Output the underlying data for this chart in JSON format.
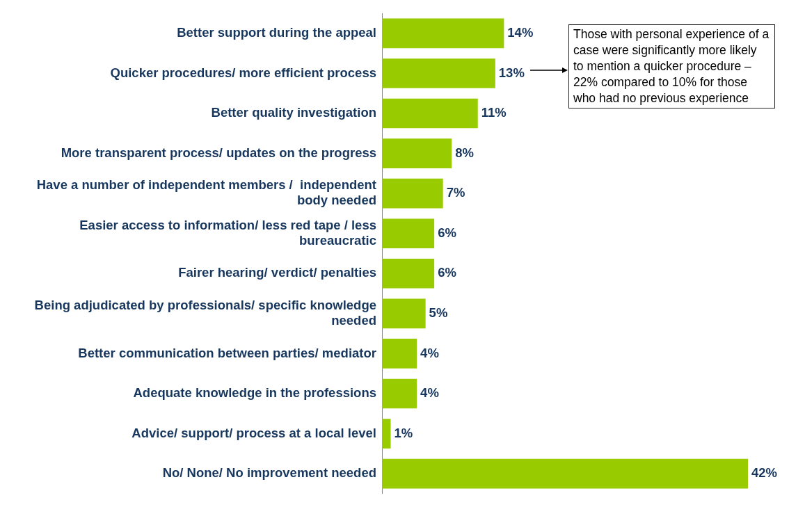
{
  "chart_data": {
    "type": "bar",
    "orientation": "horizontal",
    "categories": [
      "Better support during the appeal",
      "Quicker procedures/ more efficient process",
      "Better quality investigation",
      "More transparent process/ updates on the progress",
      "Have a number of independent members /  independent body needed",
      "Easier access to information/ less red tape / less bureaucratic",
      "Fairer hearing/ verdict/ penalties",
      "Being adjudicated by professionals/ specific knowledge needed",
      "Better communication between parties/ mediator",
      "Adequate knowledge in the professions",
      "Advice/ support/ process at a local level",
      "No/ None/ No improvement needed"
    ],
    "values": [
      14,
      13,
      11,
      8,
      7,
      6,
      6,
      5,
      4,
      4,
      1,
      42
    ],
    "value_labels": [
      "14%",
      "13%",
      "11%",
      "8%",
      "7%",
      "6%",
      "6%",
      "5%",
      "4%",
      "4%",
      "1%",
      "42%"
    ],
    "color": "#99cc00",
    "annotations": [
      "Those with personal experience of a case were significantly more likely to mention a quicker procedure – 22% compared to 10% for those who had no previous experience"
    ],
    "grid": false,
    "legend": false
  }
}
